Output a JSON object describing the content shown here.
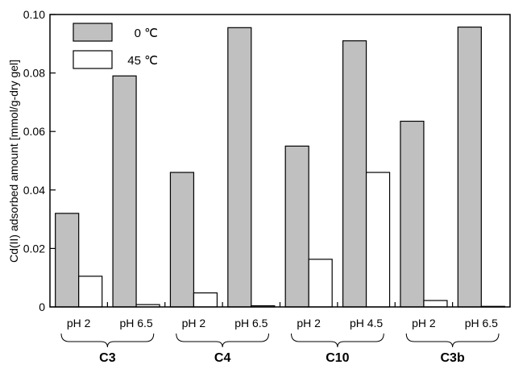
{
  "chart_data": {
    "type": "bar",
    "ylabel": "Cd(II) adsorbed amount [mmol/g-dry gel]",
    "ylim": [
      0,
      0.1
    ],
    "yticks": [
      "0",
      "0.02",
      "0.04",
      "0.06",
      "0.08",
      "0.10"
    ],
    "ytick_values": [
      0,
      0.02,
      0.04,
      0.06,
      0.08,
      0.1
    ],
    "grid": false,
    "legend_position": "top-left",
    "categories": [
      "pH 2",
      "pH 6.5",
      "pH 2",
      "pH 6.5",
      "pH 2",
      "pH 4.5",
      "pH 2",
      "pH 6.5"
    ],
    "groups": [
      {
        "label": "C3",
        "categories": [
          0,
          1
        ]
      },
      {
        "label": "C4",
        "categories": [
          2,
          3
        ]
      },
      {
        "label": "C10",
        "categories": [
          4,
          5
        ]
      },
      {
        "label": "C3b",
        "categories": [
          6,
          7
        ]
      }
    ],
    "series": [
      {
        "name": "0 ℃",
        "color": "#c0c0c0",
        "values": [
          0.032,
          0.079,
          0.046,
          0.0955,
          0.055,
          0.091,
          0.0635,
          0.0957
        ]
      },
      {
        "name": "45 ℃",
        "color": "#ffffff",
        "values": [
          0.0105,
          0.0008,
          0.0048,
          0.0004,
          0.0163,
          0.046,
          0.0022,
          0.0002
        ]
      }
    ]
  }
}
